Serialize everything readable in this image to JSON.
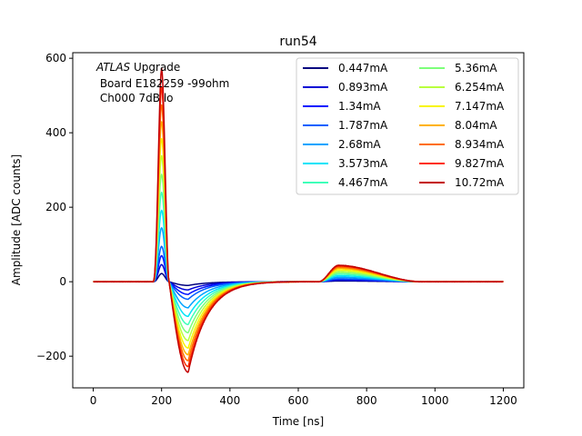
{
  "chart_data": {
    "type": "line",
    "title": "run54",
    "xlabel": "Time [ns]",
    "ylabel": "Amplitude [ADC counts]",
    "xlim": [
      -60,
      1260
    ],
    "ylim": [
      -285,
      615
    ],
    "xticks": [
      0,
      200,
      400,
      600,
      800,
      1000,
      1200
    ],
    "yticks": [
      -200,
      0,
      200,
      400,
      600
    ],
    "ytick_labels": [
      "−200",
      "0",
      "200",
      "400",
      "600"
    ],
    "grid": false,
    "legend_placement": "top-right",
    "legend_columns": 2,
    "annotation": {
      "italic": "ATLAS",
      "line1_rest": " Upgrade",
      "line2": " Board E182259 -99ohm",
      "line3": " Ch000 7dB lo"
    },
    "pulse_model": {
      "baseline_start_ns": 0,
      "baseline_end_ns": 1200,
      "rise_start_ns": 175,
      "peak_ns": 200,
      "zero_cross_ns": 222,
      "undershoot_min_ns": 278,
      "recovery_ns": 620,
      "reflection_start_ns": 660,
      "reflection_peak_ns": 718,
      "reflection_end_ns": 960
    },
    "series": [
      {
        "name": "0.447mA",
        "color": "#00007f",
        "peak": 22,
        "undershoot": -10,
        "reflection": 2
      },
      {
        "name": "0.893mA",
        "color": "#0000d5",
        "peak": 46,
        "undershoot": -22,
        "reflection": 4
      },
      {
        "name": "1.34mA",
        "color": "#0010ff",
        "peak": 70,
        "undershoot": -34,
        "reflection": 6
      },
      {
        "name": "1.787mA",
        "color": "#0060ff",
        "peak": 95,
        "undershoot": -47,
        "reflection": 8
      },
      {
        "name": "2.68mA",
        "color": "#00a4ff",
        "peak": 145,
        "undershoot": -70,
        "reflection": 12
      },
      {
        "name": "3.573mA",
        "color": "#00e4f8",
        "peak": 192,
        "undershoot": -93,
        "reflection": 16
      },
      {
        "name": "4.467mA",
        "color": "#3effb9",
        "peak": 240,
        "undershoot": -115,
        "reflection": 20
      },
      {
        "name": "5.36mA",
        "color": "#7dff7a",
        "peak": 288,
        "undershoot": -137,
        "reflection": 24
      },
      {
        "name": "6.254mA",
        "color": "#b9ff3e",
        "peak": 338,
        "undershoot": -158,
        "reflection": 28
      },
      {
        "name": "7.147mA",
        "color": "#f8f500",
        "peak": 384,
        "undershoot": -178,
        "reflection": 32
      },
      {
        "name": "8.04mA",
        "color": "#ffb200",
        "peak": 430,
        "undershoot": -196,
        "reflection": 36
      },
      {
        "name": "8.934mA",
        "color": "#ff6e00",
        "peak": 475,
        "undershoot": -212,
        "reflection": 39
      },
      {
        "name": "9.827mA",
        "color": "#ff2e00",
        "peak": 522,
        "undershoot": -228,
        "reflection": 42
      },
      {
        "name": "10.72mA",
        "color": "#c30000",
        "peak": 572,
        "undershoot": -243,
        "reflection": 44
      }
    ]
  }
}
